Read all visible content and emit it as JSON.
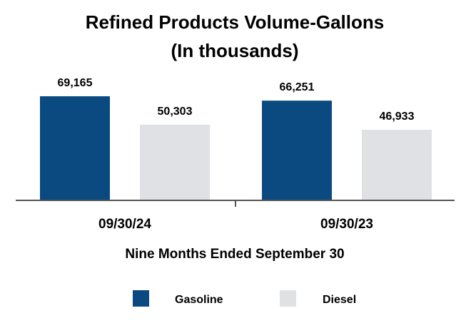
{
  "chart_data": {
    "type": "bar",
    "title_line1": "Refined Products Volume-Gallons",
    "title_line2": "(In thousands)",
    "categories": [
      "09/30/24",
      "09/30/23"
    ],
    "series": [
      {
        "name": "Gasoline",
        "color": "#0a4a80",
        "values": [
          69165,
          66251
        ],
        "labels": [
          "69,165",
          "66,251"
        ]
      },
      {
        "name": "Diesel",
        "color": "#e0e1e5",
        "values": [
          50303,
          46933
        ],
        "labels": [
          "50,303",
          "46,933"
        ]
      }
    ],
    "xlabel": "Nine Months Ended September 30",
    "ylabel": "",
    "ylim": [
      0,
      100000
    ],
    "legend_position": "bottom"
  }
}
